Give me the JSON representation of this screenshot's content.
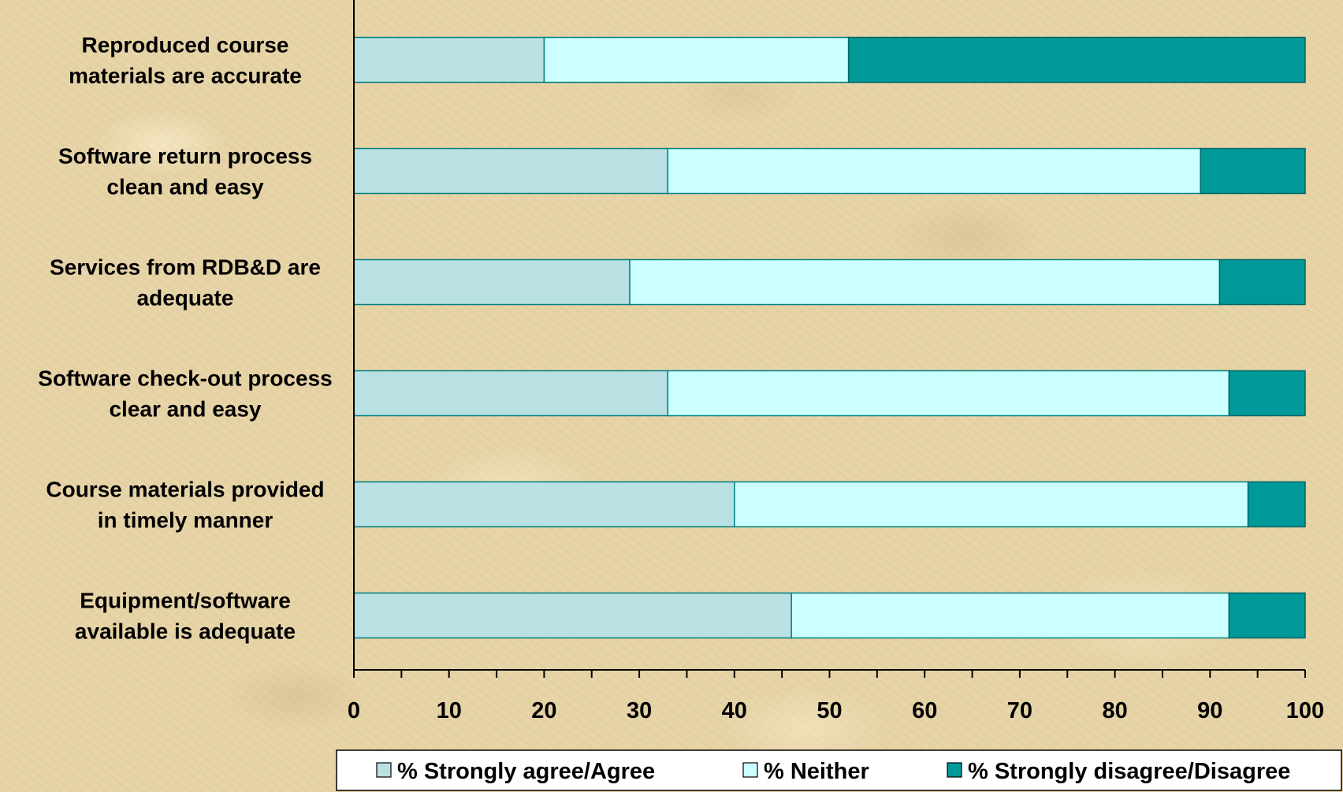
{
  "chart_data": {
    "type": "bar",
    "orientation": "horizontal",
    "stacked": true,
    "categories": [
      [
        "Reproduced course",
        "materials are accurate"
      ],
      [
        "Software return process",
        "clean and easy"
      ],
      [
        "Services from RDB&D are",
        "adequate"
      ],
      [
        "Software check-out process",
        "clear and easy"
      ],
      [
        "Course materials provided",
        "in timely manner"
      ],
      [
        "Equipment/software",
        "available is adequate"
      ]
    ],
    "series": [
      {
        "name": "% Strongly agree/Agree",
        "color": "#b9e0e2",
        "values": [
          20,
          33,
          29,
          33,
          40,
          46
        ]
      },
      {
        "name": "% Neither",
        "color": "#ccffff",
        "values": [
          32,
          56,
          62,
          59,
          54,
          46
        ]
      },
      {
        "name": "% Strongly disagree/Disagree",
        "color": "#009999",
        "values": [
          48,
          11,
          9,
          8,
          6,
          8
        ]
      }
    ],
    "xlim": [
      0,
      100
    ],
    "xticks": [
      "0",
      "10",
      "20",
      "30",
      "40",
      "50",
      "60",
      "70",
      "80",
      "90",
      "100"
    ],
    "grid": false,
    "legend_position": "bottom"
  }
}
